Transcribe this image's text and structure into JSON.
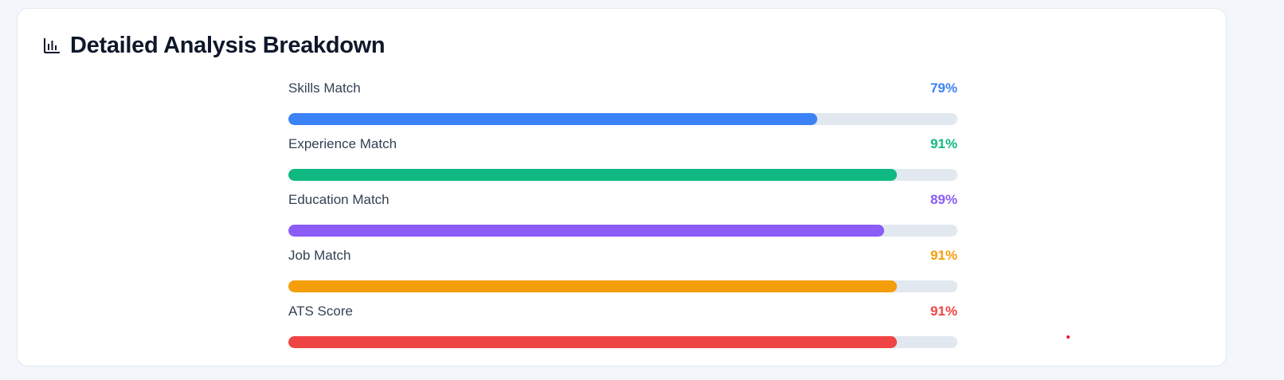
{
  "card": {
    "title": "Detailed Analysis Breakdown",
    "title_icon": "bar-chart-icon"
  },
  "metrics": [
    {
      "label": "Skills Match",
      "value_text": "79%",
      "value": 79,
      "color": "#3b82f6"
    },
    {
      "label": "Experience Match",
      "value_text": "91%",
      "value": 91,
      "color": "#10b981"
    },
    {
      "label": "Education Match",
      "value_text": "89%",
      "value": 89,
      "color": "#8b5cf6"
    },
    {
      "label": "Job Match",
      "value_text": "91%",
      "value": 91,
      "color": "#f59e0b"
    },
    {
      "label": "ATS Score",
      "value_text": "91%",
      "value": 91,
      "color": "#ef4444"
    }
  ],
  "colors": {
    "track": "#e2e8f0",
    "title": "#0f172a",
    "label": "#334155"
  }
}
